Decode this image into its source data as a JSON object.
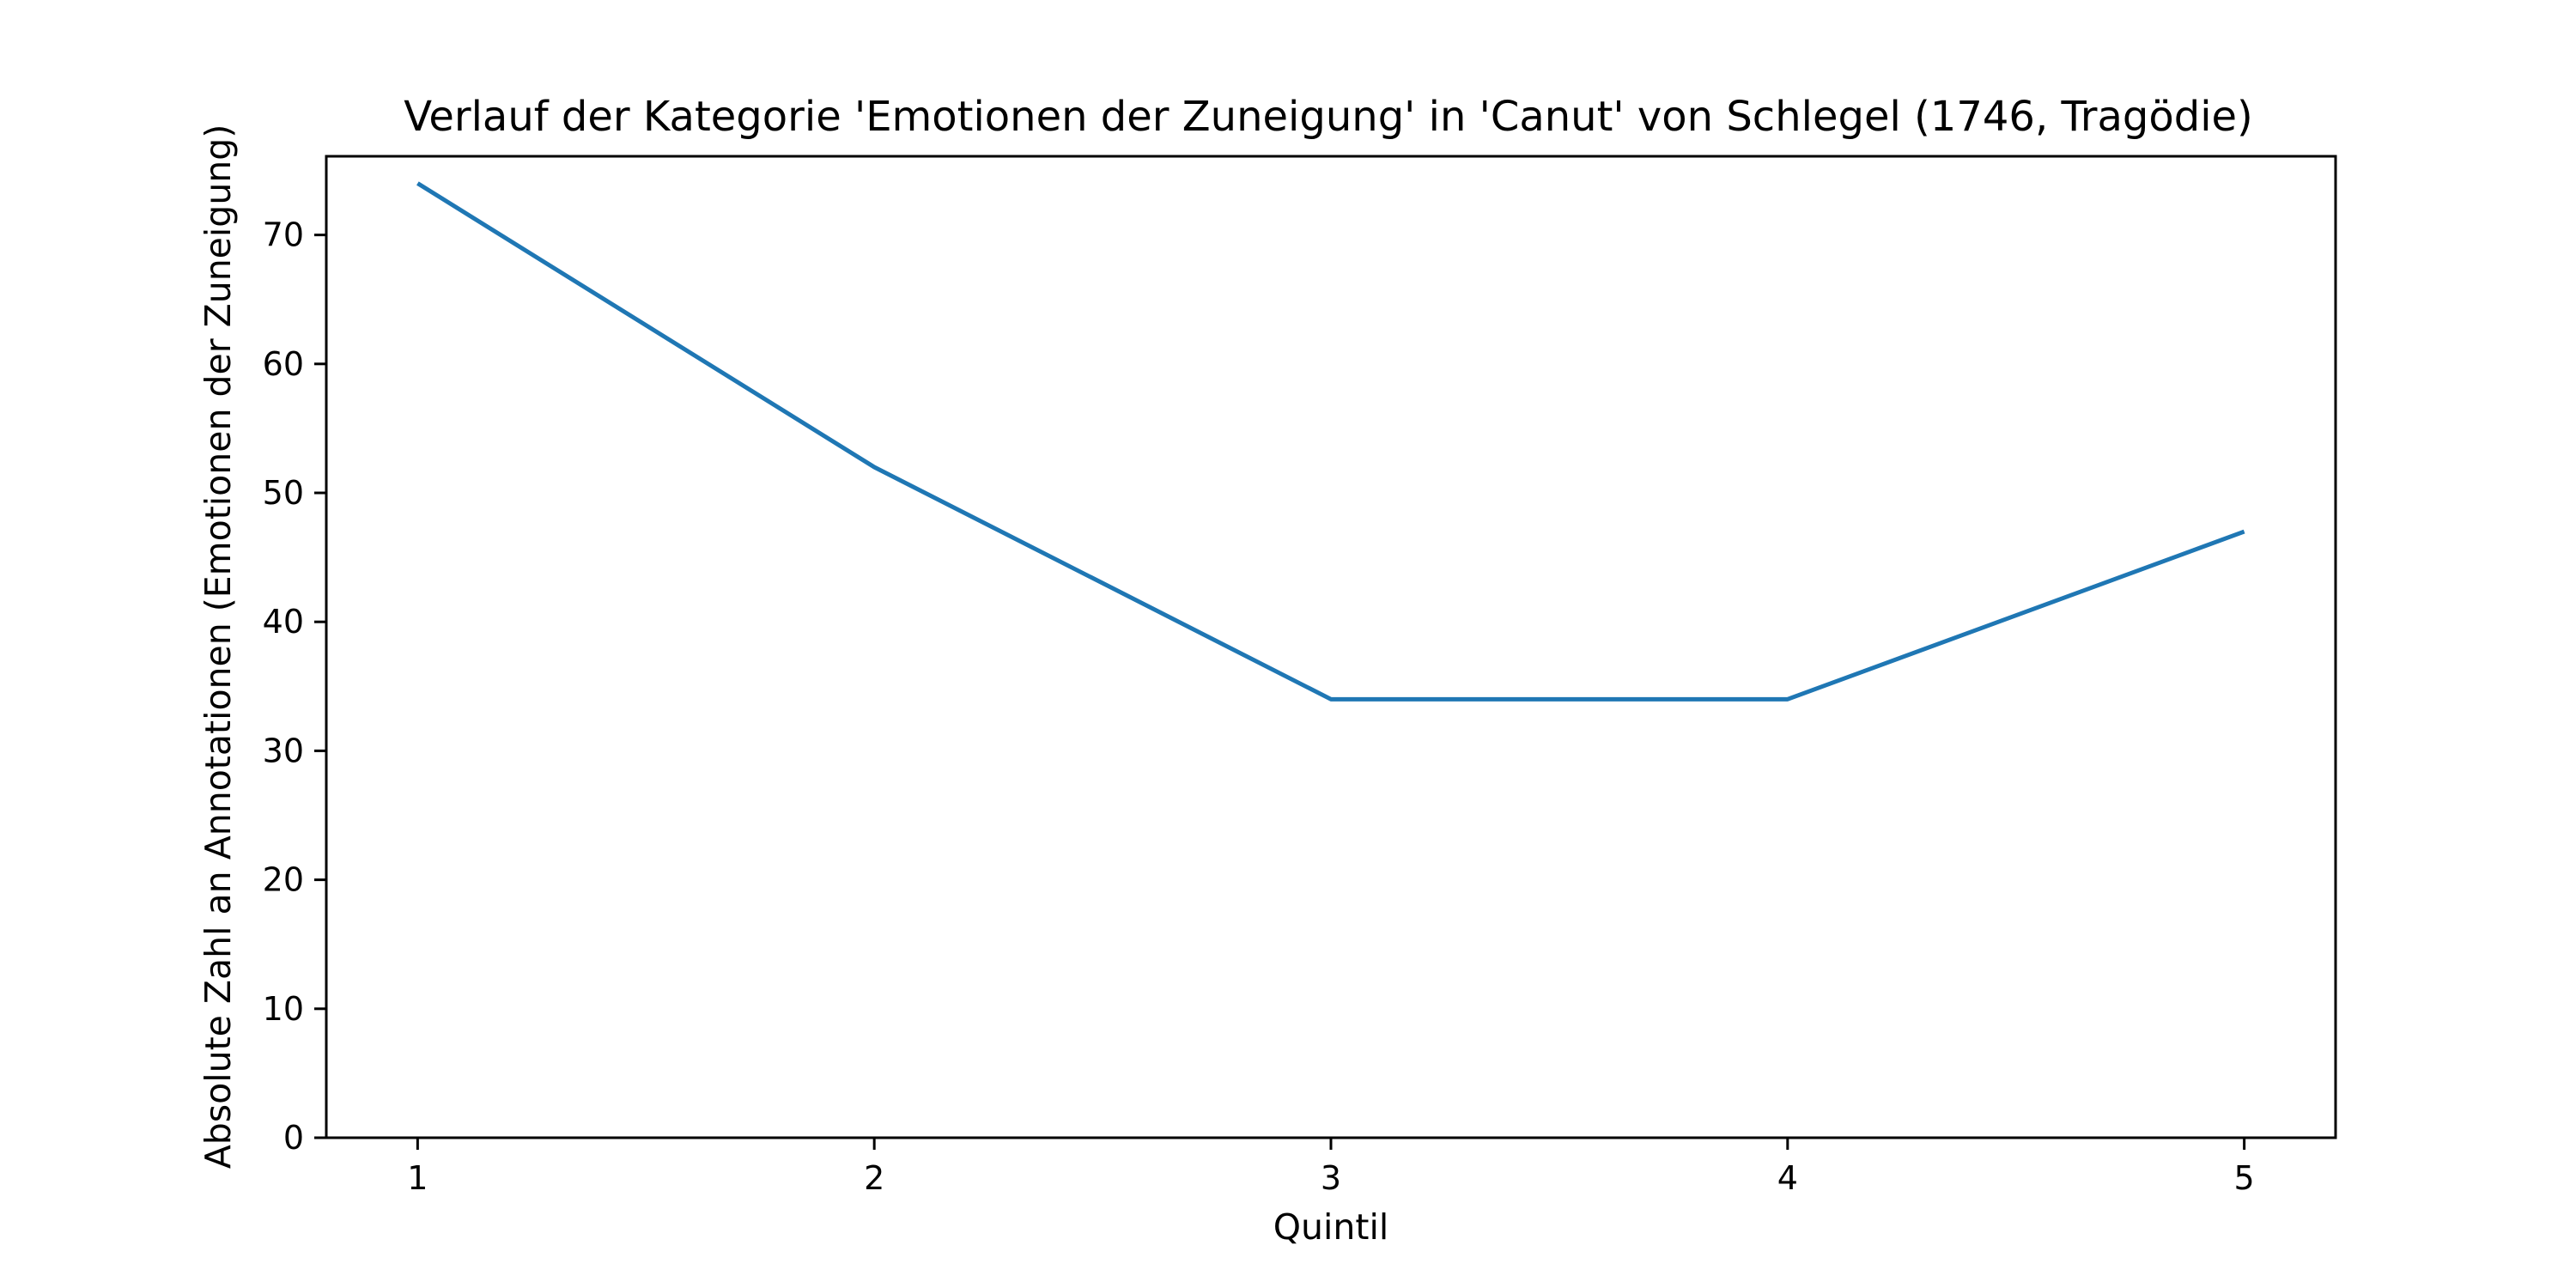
{
  "chart_data": {
    "type": "line",
    "title": "Verlauf der Kategorie 'Emotionen der Zuneigung' in 'Canut' von Schlegel (1746, Tragödie)",
    "xlabel": "Quintil",
    "ylabel": "Absolute Zahl an Annotationen (Emotionen der Zuneigung)",
    "x": [
      1,
      2,
      3,
      4,
      5
    ],
    "x_tick_labels": [
      "1",
      "2",
      "3",
      "4",
      "5"
    ],
    "y_ticks": [
      0,
      10,
      20,
      30,
      40,
      50,
      60,
      70
    ],
    "y_tick_labels": [
      "0",
      "10",
      "20",
      "30",
      "40",
      "50",
      "60",
      "70"
    ],
    "xlim": [
      0.8,
      5.2
    ],
    "ylim": [
      0,
      76.1
    ],
    "grid": false,
    "series": [
      {
        "values": [
          74,
          52,
          34,
          34,
          47
        ],
        "color": "#1f77b4"
      }
    ]
  }
}
